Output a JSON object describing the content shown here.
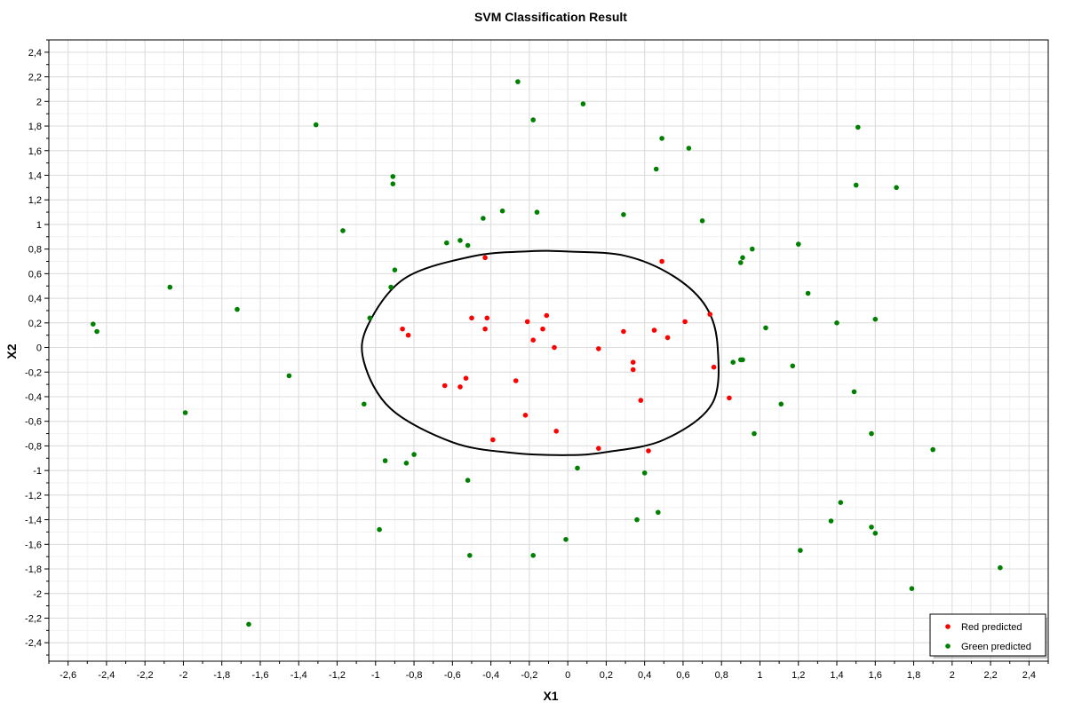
{
  "chart_data": {
    "type": "scatter",
    "title": "SVM Classification Result",
    "xlabel": "X1",
    "ylabel": "X2",
    "xlim": [
      -2.7,
      2.5
    ],
    "ylim": [
      -2.55,
      2.5
    ],
    "xticks": [
      -2.6,
      -2.4,
      -2.2,
      -2,
      -1.8,
      -1.6,
      -1.4,
      -1.2,
      -1,
      -0.8,
      -0.6,
      -0.4,
      -0.2,
      0,
      0.2,
      0.4,
      0.6,
      0.8,
      1,
      1.2,
      1.4,
      1.6,
      1.8,
      2,
      2.2,
      2.4
    ],
    "yticks": [
      -2.4,
      -2.2,
      -2,
      -1.8,
      -1.6,
      -1.4,
      -1.2,
      -1,
      -0.8,
      -0.6,
      -0.4,
      -0.2,
      0,
      0.2,
      0.4,
      0.6,
      0.8,
      1,
      1.2,
      1.4,
      1.6,
      1.8,
      2,
      2.2,
      2.4
    ],
    "decimal_separator": ",",
    "grid": true,
    "legend_position": "bottom-right",
    "colors": {
      "red": "#ff0000",
      "green": "#008000",
      "boundary": "#000000"
    },
    "series": [
      {
        "name": "Red predicted",
        "color": "#ff0000",
        "points": [
          [
            -0.43,
            0.73
          ],
          [
            0.49,
            0.7
          ],
          [
            0.74,
            0.27
          ],
          [
            0.61,
            0.21
          ],
          [
            -0.5,
            0.24
          ],
          [
            -0.42,
            0.24
          ],
          [
            -0.21,
            0.21
          ],
          [
            -0.11,
            0.26
          ],
          [
            -0.13,
            0.15
          ],
          [
            -0.86,
            0.15
          ],
          [
            -0.83,
            0.1
          ],
          [
            -0.43,
            0.15
          ],
          [
            -0.18,
            0.06
          ],
          [
            0.29,
            0.13
          ],
          [
            0.45,
            0.14
          ],
          [
            0.52,
            0.08
          ],
          [
            -0.07,
            0.0
          ],
          [
            0.16,
            -0.01
          ],
          [
            0.34,
            -0.12
          ],
          [
            0.34,
            -0.18
          ],
          [
            0.76,
            -0.16
          ],
          [
            -0.64,
            -0.31
          ],
          [
            -0.56,
            -0.32
          ],
          [
            -0.53,
            -0.25
          ],
          [
            -0.27,
            -0.27
          ],
          [
            0.38,
            -0.43
          ],
          [
            0.84,
            -0.41
          ],
          [
            -0.22,
            -0.55
          ],
          [
            -0.06,
            -0.68
          ],
          [
            -0.39,
            -0.75
          ],
          [
            0.16,
            -0.82
          ],
          [
            0.42,
            -0.84
          ]
        ]
      },
      {
        "name": "Green predicted",
        "color": "#008000",
        "points": [
          [
            -0.26,
            2.16
          ],
          [
            0.08,
            1.98
          ],
          [
            -1.31,
            1.81
          ],
          [
            -0.18,
            1.85
          ],
          [
            1.51,
            1.79
          ],
          [
            0.49,
            1.7
          ],
          [
            0.63,
            1.62
          ],
          [
            0.46,
            1.45
          ],
          [
            -0.91,
            1.39
          ],
          [
            -0.91,
            1.33
          ],
          [
            1.5,
            1.32
          ],
          [
            1.71,
            1.3
          ],
          [
            -0.34,
            1.11
          ],
          [
            -0.16,
            1.1
          ],
          [
            0.29,
            1.08
          ],
          [
            -0.44,
            1.05
          ],
          [
            0.7,
            1.03
          ],
          [
            -1.17,
            0.95
          ],
          [
            -0.63,
            0.85
          ],
          [
            -0.56,
            0.87
          ],
          [
            -0.52,
            0.83
          ],
          [
            1.2,
            0.84
          ],
          [
            0.96,
            0.8
          ],
          [
            0.91,
            0.73
          ],
          [
            0.9,
            0.69
          ],
          [
            -2.07,
            0.49
          ],
          [
            -0.9,
            0.63
          ],
          [
            -0.92,
            0.49
          ],
          [
            1.25,
            0.44
          ],
          [
            -1.72,
            0.31
          ],
          [
            -1.03,
            0.24
          ],
          [
            1.6,
            0.23
          ],
          [
            1.4,
            0.2
          ],
          [
            1.03,
            0.16
          ],
          [
            -2.47,
            0.19
          ],
          [
            -2.45,
            0.13
          ],
          [
            0.9,
            -0.1
          ],
          [
            0.91,
            -0.1
          ],
          [
            0.86,
            -0.12
          ],
          [
            1.17,
            -0.15
          ],
          [
            -1.45,
            -0.23
          ],
          [
            1.49,
            -0.36
          ],
          [
            -1.06,
            -0.46
          ],
          [
            1.11,
            -0.46
          ],
          [
            -1.99,
            -0.53
          ],
          [
            0.97,
            -0.7
          ],
          [
            1.58,
            -0.7
          ],
          [
            1.9,
            -0.83
          ],
          [
            -0.95,
            -0.92
          ],
          [
            -0.84,
            -0.94
          ],
          [
            -0.8,
            -0.87
          ],
          [
            0.05,
            -0.98
          ],
          [
            0.4,
            -1.02
          ],
          [
            -0.52,
            -1.08
          ],
          [
            1.42,
            -1.26
          ],
          [
            0.47,
            -1.34
          ],
          [
            0.36,
            -1.4
          ],
          [
            1.37,
            -1.41
          ],
          [
            1.58,
            -1.46
          ],
          [
            1.6,
            -1.51
          ],
          [
            -0.98,
            -1.48
          ],
          [
            -0.01,
            -1.56
          ],
          [
            -0.51,
            -1.69
          ],
          [
            -0.18,
            -1.69
          ],
          [
            1.21,
            -1.65
          ],
          [
            2.25,
            -1.79
          ],
          [
            1.79,
            -1.96
          ],
          [
            -1.66,
            -2.25
          ]
        ]
      }
    ],
    "decision_boundary": [
      [
        0.0,
        0.78
      ],
      [
        0.3,
        0.745
      ],
      [
        0.55,
        0.58
      ],
      [
        0.72,
        0.33
      ],
      [
        0.78,
        0.0
      ],
      [
        0.75,
        -0.46
      ],
      [
        0.5,
        -0.75
      ],
      [
        0.2,
        -0.85
      ],
      [
        0.0,
        -0.875
      ],
      [
        -0.3,
        -0.855
      ],
      [
        -0.6,
        -0.77
      ],
      [
        -0.92,
        -0.5
      ],
      [
        -1.06,
        -0.12
      ],
      [
        -1.04,
        0.18
      ],
      [
        -0.85,
        0.56
      ],
      [
        -0.5,
        0.74
      ],
      [
        -0.2,
        0.782
      ],
      [
        0.0,
        0.78
      ]
    ]
  }
}
